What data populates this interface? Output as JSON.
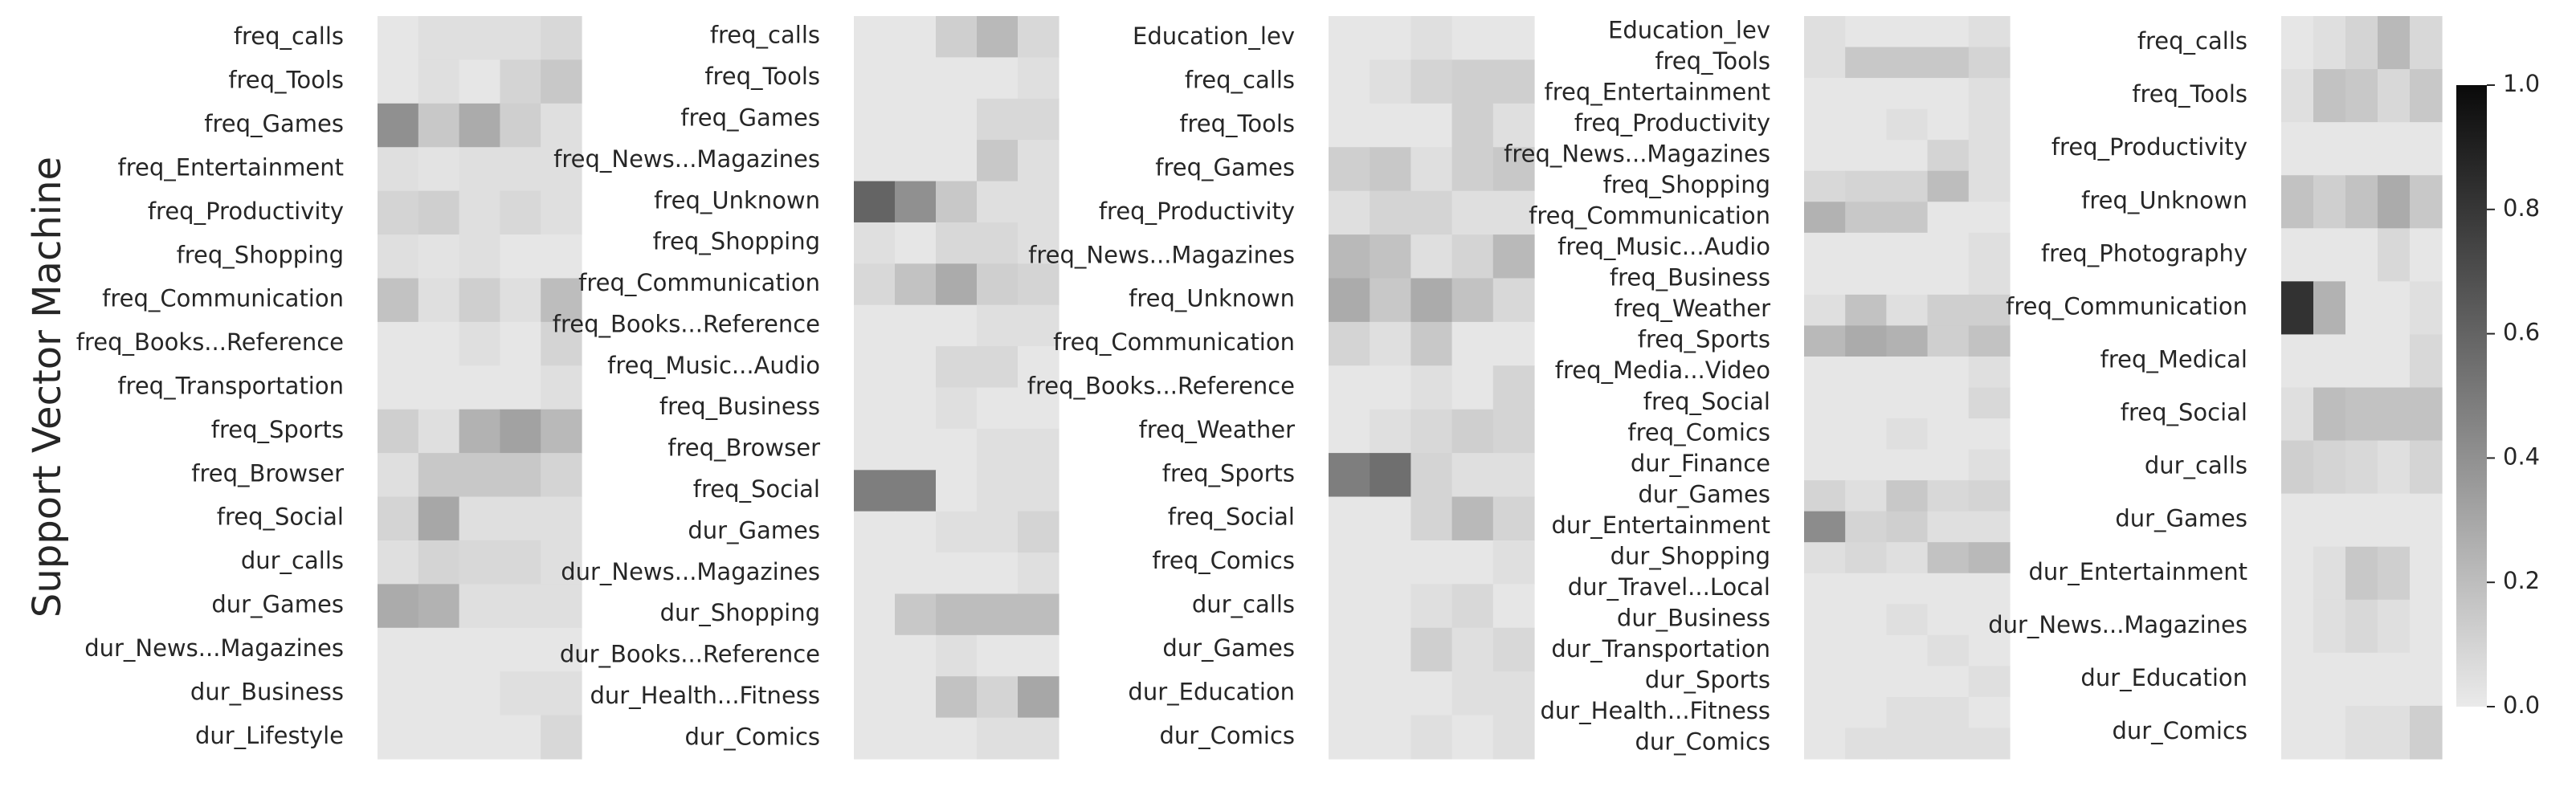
{
  "figure": {
    "ylabel": "Support Vector Machine"
  },
  "colorbar": {
    "ticks": [
      "1.0",
      "0.8",
      "0.6",
      "0.4",
      "0.2",
      "0.0"
    ],
    "range": [
      0,
      1
    ],
    "colormap": [
      "#eaeaea",
      "#0a0a0a"
    ]
  },
  "chart_data": [
    {
      "type": "heatmap",
      "rows": [
        "freq_calls",
        "freq_Tools",
        "freq_Games",
        "freq_Entertainment",
        "freq_Productivity",
        "freq_Shopping",
        "freq_Communication",
        "freq_Books...Reference",
        "freq_Transportation",
        "freq_Sports",
        "freq_Browser",
        "freq_Social",
        "dur_calls",
        "dur_Games",
        "dur_News...Magazines",
        "dur_Business",
        "dur_Lifestyle"
      ],
      "values": [
        [
          0.02,
          0.05,
          0.05,
          0.05,
          0.08
        ],
        [
          0.02,
          0.05,
          0.02,
          0.1,
          0.15
        ],
        [
          0.4,
          0.15,
          0.28,
          0.12,
          0.05
        ],
        [
          0.05,
          0.03,
          0.05,
          0.05,
          0.05
        ],
        [
          0.1,
          0.12,
          0.05,
          0.08,
          0.05
        ],
        [
          0.05,
          0.03,
          0.05,
          0.02,
          0.02
        ],
        [
          0.18,
          0.05,
          0.12,
          0.05,
          0.2
        ],
        [
          0.02,
          0.02,
          0.05,
          0.02,
          0.1
        ],
        [
          0.02,
          0.02,
          0.02,
          0.02,
          0.05
        ],
        [
          0.12,
          0.05,
          0.25,
          0.32,
          0.22
        ],
        [
          0.05,
          0.15,
          0.15,
          0.15,
          0.1
        ],
        [
          0.1,
          0.3,
          0.05,
          0.05,
          0.05
        ],
        [
          0.05,
          0.1,
          0.08,
          0.08,
          0.05
        ],
        [
          0.28,
          0.25,
          0.05,
          0.05,
          0.05
        ],
        [
          0.02,
          0.02,
          0.02,
          0.02,
          0.02
        ],
        [
          0.02,
          0.02,
          0.02,
          0.05,
          0.05
        ],
        [
          0.02,
          0.02,
          0.02,
          0.02,
          0.08
        ]
      ]
    },
    {
      "type": "heatmap",
      "rows": [
        "freq_calls",
        "freq_Tools",
        "freq_Games",
        "freq_News...Magazines",
        "freq_Unknown",
        "freq_Shopping",
        "freq_Communication",
        "freq_Books...Reference",
        "freq_Music...Audio",
        "freq_Business",
        "freq_Browser",
        "freq_Social",
        "dur_Games",
        "dur_News...Magazines",
        "dur_Shopping",
        "dur_Books...Reference",
        "dur_Health...Fitness",
        "dur_Comics"
      ],
      "values": [
        [
          0.02,
          0.02,
          0.12,
          0.22,
          0.08
        ],
        [
          0.02,
          0.02,
          0.02,
          0.02,
          0.05
        ],
        [
          0.02,
          0.02,
          0.02,
          0.08,
          0.08
        ],
        [
          0.02,
          0.02,
          0.02,
          0.15,
          0.05
        ],
        [
          0.6,
          0.4,
          0.15,
          0.05,
          0.05
        ],
        [
          0.05,
          0.02,
          0.08,
          0.08,
          0.05
        ],
        [
          0.08,
          0.18,
          0.28,
          0.12,
          0.1
        ],
        [
          0.02,
          0.02,
          0.02,
          0.05,
          0.05
        ],
        [
          0.02,
          0.02,
          0.08,
          0.08,
          0.02
        ],
        [
          0.02,
          0.02,
          0.05,
          0.02,
          0.02
        ],
        [
          0.02,
          0.02,
          0.02,
          0.05,
          0.05
        ],
        [
          0.48,
          0.48,
          0.02,
          0.05,
          0.05
        ],
        [
          0.02,
          0.02,
          0.05,
          0.05,
          0.1
        ],
        [
          0.02,
          0.02,
          0.02,
          0.02,
          0.05
        ],
        [
          0.02,
          0.15,
          0.2,
          0.2,
          0.2
        ],
        [
          0.02,
          0.02,
          0.05,
          0.02,
          0.02
        ],
        [
          0.02,
          0.02,
          0.18,
          0.1,
          0.3
        ],
        [
          0.02,
          0.02,
          0.02,
          0.05,
          0.05
        ]
      ]
    },
    {
      "type": "heatmap",
      "rows": [
        "Education_lev",
        "freq_calls",
        "freq_Tools",
        "freq_Games",
        "freq_Productivity",
        "freq_News...Magazines",
        "freq_Unknown",
        "freq_Communication",
        "freq_Books...Reference",
        "freq_Weather",
        "freq_Sports",
        "freq_Social",
        "freq_Comics",
        "dur_calls",
        "dur_Games",
        "dur_Education",
        "dur_Comics"
      ],
      "values": [
        [
          0.02,
          0.02,
          0.05,
          0.02,
          0.02
        ],
        [
          0.02,
          0.05,
          0.1,
          0.12,
          0.12
        ],
        [
          0.02,
          0.02,
          0.02,
          0.12,
          0.05
        ],
        [
          0.12,
          0.15,
          0.05,
          0.12,
          0.15
        ],
        [
          0.05,
          0.1,
          0.1,
          0.05,
          0.05
        ],
        [
          0.22,
          0.18,
          0.05,
          0.1,
          0.22
        ],
        [
          0.28,
          0.15,
          0.28,
          0.18,
          0.08
        ],
        [
          0.1,
          0.05,
          0.15,
          0.02,
          0.02
        ],
        [
          0.02,
          0.02,
          0.05,
          0.02,
          0.1
        ],
        [
          0.02,
          0.05,
          0.08,
          0.12,
          0.1
        ],
        [
          0.48,
          0.55,
          0.1,
          0.05,
          0.05
        ],
        [
          0.02,
          0.02,
          0.1,
          0.22,
          0.1
        ],
        [
          0.02,
          0.02,
          0.02,
          0.02,
          0.05
        ],
        [
          0.02,
          0.02,
          0.05,
          0.08,
          0.02
        ],
        [
          0.02,
          0.02,
          0.12,
          0.05,
          0.08
        ],
        [
          0.02,
          0.02,
          0.02,
          0.05,
          0.05
        ],
        [
          0.02,
          0.02,
          0.05,
          0.02,
          0.05
        ]
      ]
    },
    {
      "type": "heatmap",
      "rows": [
        "Education_lev",
        "freq_Tools",
        "freq_Entertainment",
        "freq_Productivity",
        "freq_News...Magazines",
        "freq_Shopping",
        "freq_Communication",
        "freq_Music...Audio",
        "freq_Business",
        "freq_Weather",
        "freq_Sports",
        "freq_Media...Video",
        "freq_Social",
        "freq_Comics",
        "dur_Finance",
        "dur_Games",
        "dur_Entertainment",
        "dur_Shopping",
        "dur_Travel...Local",
        "dur_Business",
        "dur_Transportation",
        "dur_Sports",
        "dur_Health...Fitness",
        "dur_Comics"
      ],
      "values": [
        [
          0.05,
          0.02,
          0.02,
          0.02,
          0.05
        ],
        [
          0.05,
          0.15,
          0.15,
          0.15,
          0.1
        ],
        [
          0.02,
          0.02,
          0.02,
          0.02,
          0.05
        ],
        [
          0.02,
          0.02,
          0.05,
          0.02,
          0.05
        ],
        [
          0.02,
          0.02,
          0.02,
          0.1,
          0.05
        ],
        [
          0.08,
          0.1,
          0.1,
          0.2,
          0.05
        ],
        [
          0.25,
          0.15,
          0.15,
          0.02,
          0.02
        ],
        [
          0.02,
          0.02,
          0.02,
          0.02,
          0.05
        ],
        [
          0.02,
          0.02,
          0.02,
          0.02,
          0.05
        ],
        [
          0.05,
          0.18,
          0.05,
          0.12,
          0.12
        ],
        [
          0.22,
          0.28,
          0.25,
          0.12,
          0.18
        ],
        [
          0.02,
          0.02,
          0.02,
          0.02,
          0.05
        ],
        [
          0.02,
          0.02,
          0.02,
          0.02,
          0.08
        ],
        [
          0.02,
          0.02,
          0.05,
          0.02,
          0.02
        ],
        [
          0.02,
          0.02,
          0.02,
          0.02,
          0.05
        ],
        [
          0.1,
          0.05,
          0.15,
          0.08,
          0.1
        ],
        [
          0.42,
          0.1,
          0.12,
          0.05,
          0.05
        ],
        [
          0.05,
          0.08,
          0.05,
          0.18,
          0.22
        ],
        [
          0.02,
          0.02,
          0.02,
          0.02,
          0.02
        ],
        [
          0.02,
          0.02,
          0.05,
          0.02,
          0.02
        ],
        [
          0.02,
          0.02,
          0.02,
          0.05,
          0.02
        ],
        [
          0.02,
          0.02,
          0.02,
          0.02,
          0.05
        ],
        [
          0.02,
          0.02,
          0.05,
          0.05,
          0.02
        ],
        [
          0.02,
          0.05,
          0.05,
          0.05,
          0.05
        ]
      ]
    },
    {
      "type": "heatmap",
      "rows": [
        "freq_calls",
        "freq_Tools",
        "freq_Productivity",
        "freq_Unknown",
        "freq_Photography",
        "freq_Communication",
        "freq_Medical",
        "freq_Social",
        "dur_calls",
        "dur_Games",
        "dur_Entertainment",
        "dur_News...Magazines",
        "dur_Education",
        "dur_Comics"
      ],
      "values": [
        [
          0.02,
          0.05,
          0.1,
          0.22,
          0.08
        ],
        [
          0.05,
          0.18,
          0.15,
          0.08,
          0.15
        ],
        [
          0.02,
          0.02,
          0.02,
          0.02,
          0.02
        ],
        [
          0.18,
          0.12,
          0.18,
          0.28,
          0.15
        ],
        [
          0.02,
          0.02,
          0.02,
          0.08,
          0.02
        ],
        [
          0.82,
          0.25,
          0.02,
          0.02,
          0.05
        ],
        [
          0.02,
          0.02,
          0.02,
          0.02,
          0.08
        ],
        [
          0.05,
          0.2,
          0.18,
          0.18,
          0.18
        ],
        [
          0.12,
          0.1,
          0.08,
          0.05,
          0.1
        ],
        [
          0.02,
          0.02,
          0.02,
          0.02,
          0.02
        ],
        [
          0.02,
          0.05,
          0.15,
          0.12,
          0.02
        ],
        [
          0.02,
          0.05,
          0.08,
          0.05,
          0.02
        ],
        [
          0.02,
          0.02,
          0.02,
          0.02,
          0.02
        ],
        [
          0.02,
          0.02,
          0.05,
          0.05,
          0.12
        ]
      ]
    }
  ]
}
